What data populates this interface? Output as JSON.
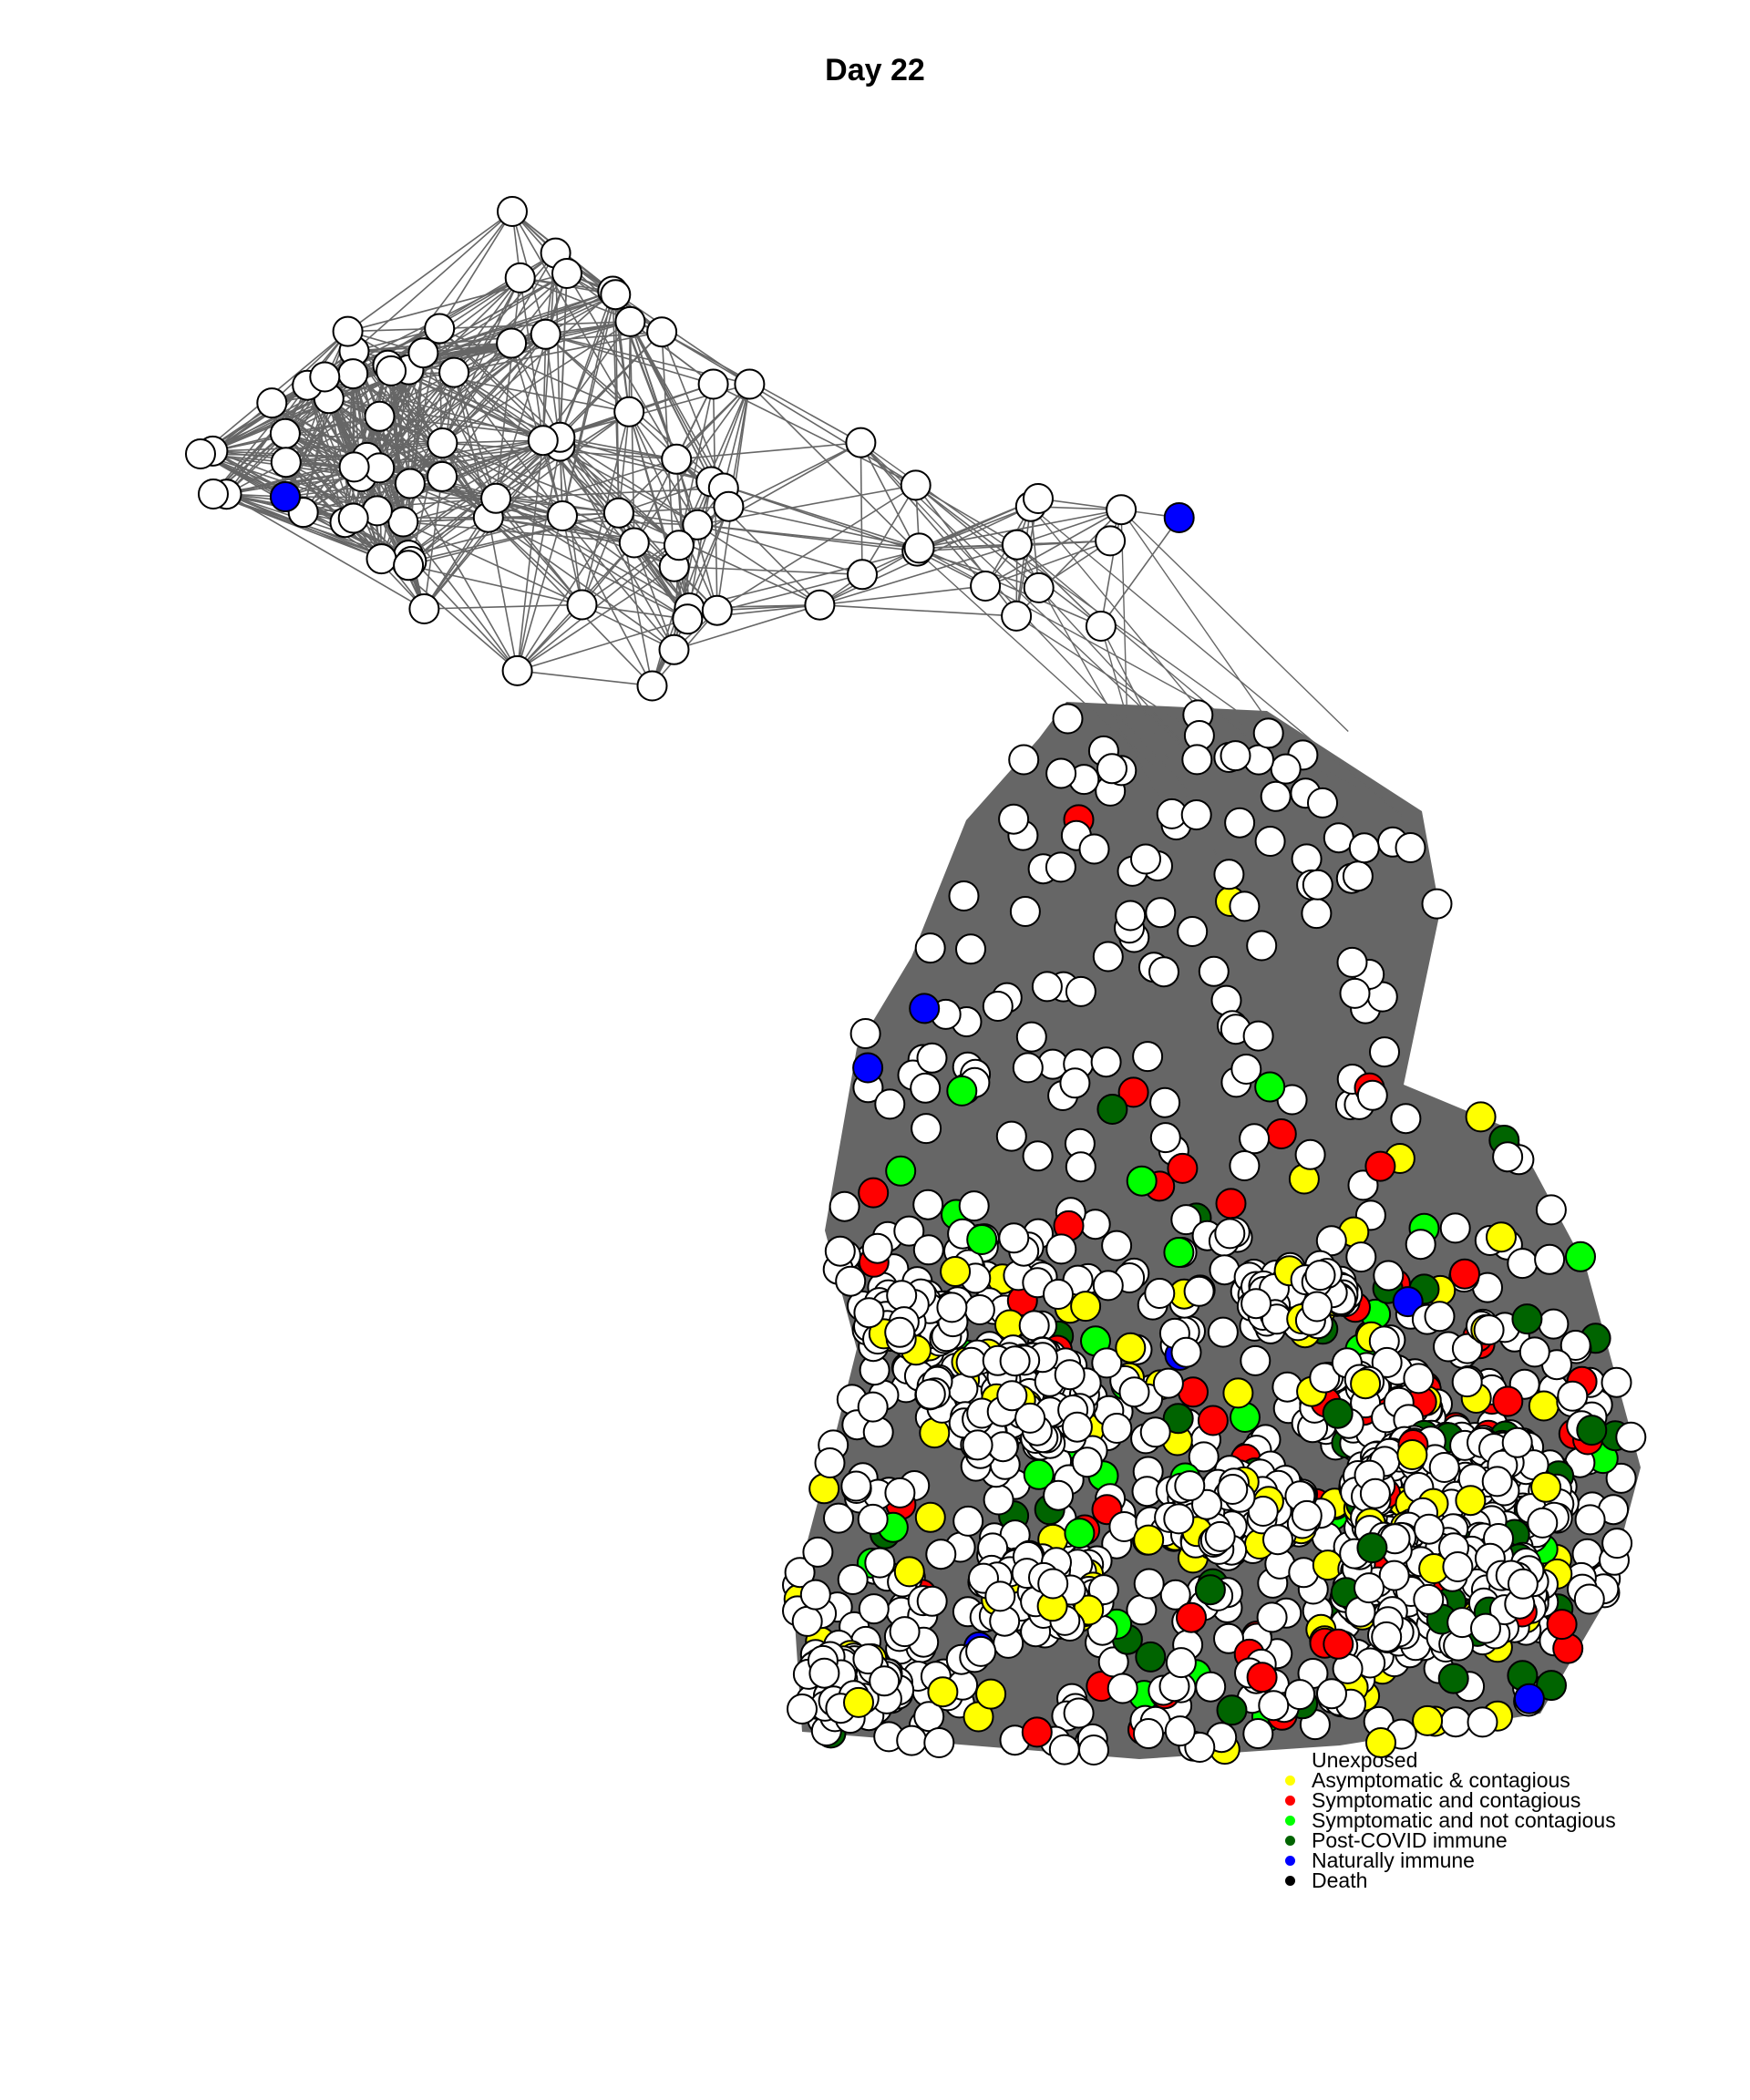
{
  "title": "Day 22",
  "legend": [
    {
      "label": "Unexposed",
      "color": "#ffffff"
    },
    {
      "label": "Asymptomatic & contagious",
      "color": "#ffff00"
    },
    {
      "label": "Symptomatic and contagious",
      "color": "#ff0000"
    },
    {
      "label": "Symptomatic and not contagious",
      "color": "#00ff00"
    },
    {
      "label": "Post-COVID immune",
      "color": "#006400"
    },
    {
      "label": "Naturally immune",
      "color": "#0000ff"
    },
    {
      "label": "Death",
      "color": "#000000"
    }
  ],
  "colors": {
    "edge": "#666666",
    "node_stroke": "#000000"
  }
}
